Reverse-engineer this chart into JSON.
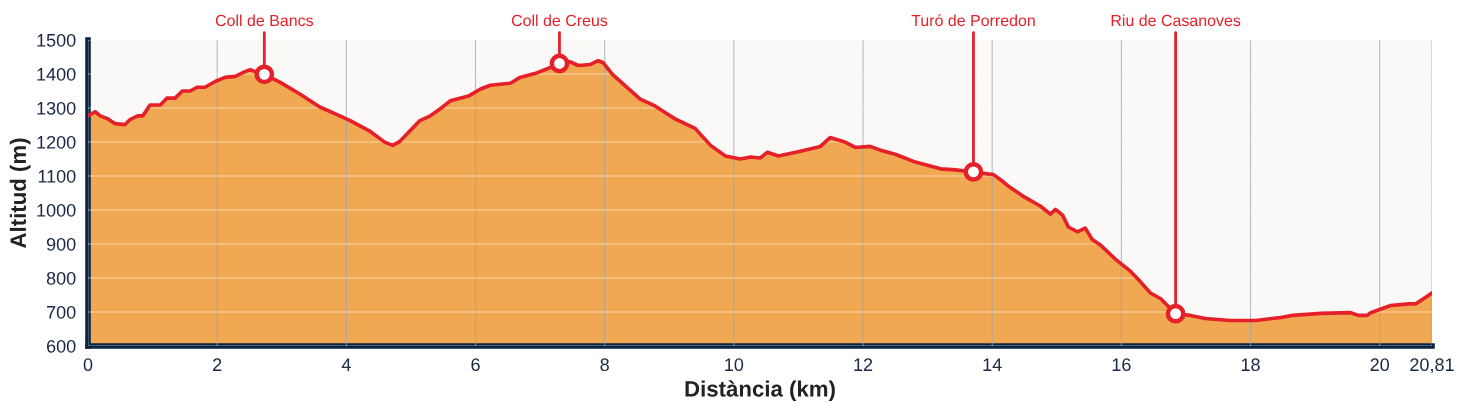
{
  "chart_data": {
    "type": "area",
    "xlabel": "Distància (km)",
    "ylabel": "Altitud (m)",
    "x": [
      0,
      0.11,
      0.19,
      0.31,
      0.42,
      0.57,
      0.65,
      0.77,
      0.85,
      0.96,
      1.12,
      1.22,
      1.35,
      1.46,
      1.58,
      1.69,
      1.81,
      1.97,
      2.12,
      2.28,
      2.43,
      2.51,
      2.59,
      2.73,
      2.97,
      3.28,
      3.59,
      3.83,
      4.06,
      4.37,
      4.6,
      4.72,
      4.83,
      4.99,
      5.14,
      5.3,
      5.45,
      5.61,
      5.76,
      5.89,
      6.07,
      6.23,
      6.38,
      6.54,
      6.69,
      6.93,
      7.16,
      7.3,
      7.47,
      7.59,
      7.78,
      7.9,
      7.98,
      8.12,
      8.55,
      8.78,
      8.94,
      9.09,
      9.4,
      9.64,
      9.87,
      10.1,
      10.26,
      10.41,
      10.52,
      10.69,
      11.03,
      11.34,
      11.49,
      11.73,
      11.88,
      12.11,
      12.27,
      12.5,
      12.81,
      13.2,
      13.43,
      13.71,
      14.02,
      14.13,
      14.28,
      14.51,
      14.75,
      14.9,
      14.98,
      15.09,
      15.18,
      15.32,
      15.44,
      15.55,
      15.67,
      15.91,
      16.14,
      16.3,
      16.45,
      16.61,
      16.84,
      17.07,
      17.3,
      17.69,
      18.08,
      18.47,
      18.65,
      19.09,
      19.55,
      19.67,
      19.81,
      19.86,
      20.17,
      20.45,
      20.56,
      20.81
    ],
    "series": [
      {
        "color": "#f0a852",
        "values": [
          1277,
          1289,
          1277,
          1268,
          1254,
          1251,
          1266,
          1277,
          1277,
          1309,
          1309,
          1329,
          1329,
          1350,
          1350,
          1361,
          1361,
          1378,
          1390,
          1393,
          1407,
          1413,
          1407,
          1399,
          1376,
          1341,
          1303,
          1283,
          1263,
          1231,
          1199,
          1190,
          1202,
          1234,
          1263,
          1277,
          1297,
          1321,
          1329,
          1335,
          1355,
          1367,
          1370,
          1373,
          1390,
          1402,
          1419,
          1431,
          1436,
          1425,
          1428,
          1439,
          1433,
          1399,
          1326,
          1306,
          1286,
          1268,
          1240,
          1190,
          1159,
          1150,
          1156,
          1153,
          1170,
          1159,
          1173,
          1187,
          1213,
          1199,
          1184,
          1187,
          1176,
          1164,
          1141,
          1121,
          1118,
          1112,
          1104,
          1089,
          1066,
          1037,
          1011,
          988,
          1002,
          985,
          950,
          936,
          947,
          913,
          898,
          855,
          820,
          788,
          756,
          739,
          695,
          690,
          681,
          675,
          675,
          684,
          690,
          696,
          698,
          690,
          690,
          698,
          719,
          724,
          724,
          756
        ]
      }
    ],
    "annotations": [
      {
        "text": "Coll de Bancs",
        "x": 2.73,
        "y": 1399
      },
      {
        "text": "Coll de Creus",
        "x": 7.3,
        "y": 1431
      },
      {
        "text": "Turó de Porredon",
        "x": 13.71,
        "y": 1112
      },
      {
        "text": "Riu de Casanoves",
        "x": 16.84,
        "y": 695
      }
    ],
    "xlim": [
      0,
      20.81
    ],
    "ylim": [
      600,
      1500
    ],
    "xticks": [
      0,
      2,
      4,
      6,
      8,
      10,
      12,
      14,
      16,
      18,
      20,
      {
        "value": 20.81,
        "label": "20,81"
      }
    ],
    "yticks": [
      600,
      700,
      800,
      900,
      1000,
      1100,
      1200,
      1300,
      1400,
      1500
    ],
    "grid": true
  }
}
